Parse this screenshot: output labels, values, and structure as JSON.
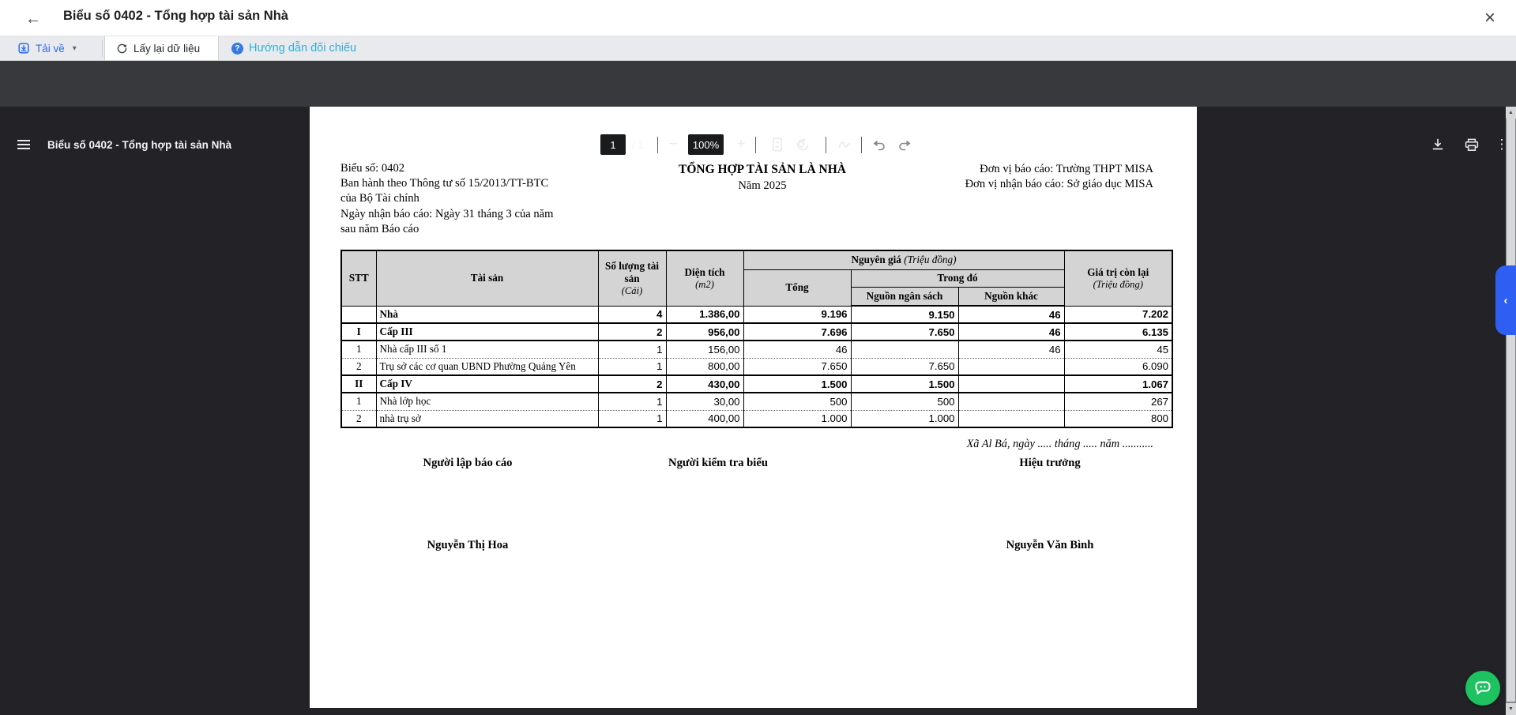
{
  "ui_colors": {
    "accent_blue": "#2e6bf0",
    "guide_teal": "#2fb0d8",
    "help_circle_blue": "#3779e3",
    "toolbar_dark": "#38393d",
    "viewer_bg": "#232327",
    "side_tab_blue": "#2e5ff2",
    "chat_green": "#1ec261",
    "table_header_gray": "#d4d4d4"
  },
  "glyphs": {
    "back": "←",
    "close": "×",
    "caret_down": "▾",
    "help": "?",
    "zoom_out": "−",
    "zoom_in": "+",
    "more_vertical": "⋮",
    "panel_chevron": "‹",
    "scroll_up": "▲",
    "scroll_down": "▼"
  },
  "window": {
    "title": "Biểu số 0402 - Tổng hợp tài sản Nhà"
  },
  "action_bar": {
    "download_label": "Tải về",
    "reload_label": "Lấy lại dữ liệu",
    "guide_label": "Hướng dẫn đối chiếu"
  },
  "pdf_toolbar": {
    "doc_title": "Biểu số 0402 - Tổng hợp tài sản Nhà",
    "page_current": "1",
    "page_total": "/ 1",
    "zoom_level": "100%"
  },
  "document": {
    "meta_left": [
      "Biểu số: 0402",
      "Ban hành theo Thông tư số 15/2013/TT-BTC",
      "của Bộ Tài chính",
      "Ngày nhận báo cáo: Ngày 31 tháng 3 của năm",
      "sau năm Báo cáo"
    ],
    "title": "TỔNG HỢP TÀI SẢN LÀ NHÀ",
    "subtitle": "Năm 2025",
    "meta_right": [
      "Đơn vị báo cáo: Trường THPT MISA",
      "Đơn vị nhận báo cáo: Sở giáo dục MISA"
    ],
    "table": {
      "headers": {
        "stt": "STT",
        "asset": "Tài sản",
        "quantity": "Số lượng tài sản",
        "quantity_unit": "(Cái)",
        "area": "Diện tích",
        "area_unit": "(m2)",
        "original_cost": "Nguyên giá",
        "original_cost_unit": "(Triệu đồng)",
        "total": "Tổng",
        "of_which": "Trong đó",
        "budget_source": "Nguồn ngân sách",
        "other_source": "Nguồn khác",
        "remaining_value": "Giá trị còn lại",
        "remaining_value_unit": "(Triệu đồng)"
      },
      "rows": [
        {
          "stt": "",
          "name": "Nhà",
          "qty": "4",
          "area": "1.386,00",
          "total": "9.196",
          "budget": "9.150",
          "other": "46",
          "remain": "7.202",
          "bold": true,
          "sep": "thin"
        },
        {
          "stt": "I",
          "name": "Cấp III",
          "qty": "2",
          "area": "956,00",
          "total": "7.696",
          "budget": "7.650",
          "other": "46",
          "remain": "6.135",
          "bold": true,
          "sep": "solid"
        },
        {
          "stt": "1",
          "name": "Nhà cấp III số 1",
          "qty": "1",
          "area": "156,00",
          "total": "46",
          "budget": "",
          "other": "46",
          "remain": "45",
          "bold": false,
          "sep": "solid"
        },
        {
          "stt": "2",
          "name": "Trụ sở các cơ quan UBND Phường Quảng Yên",
          "qty": "1",
          "area": "800,00",
          "total": "7.650",
          "budget": "7.650",
          "other": "",
          "remain": "6.090",
          "bold": false,
          "sep": "dotted"
        },
        {
          "stt": "II",
          "name": "Cấp IV",
          "qty": "2",
          "area": "430,00",
          "total": "1.500",
          "budget": "1.500",
          "other": "",
          "remain": "1.067",
          "bold": true,
          "sep": "solid"
        },
        {
          "stt": "1",
          "name": "Nhà lớp học",
          "qty": "1",
          "area": "30,00",
          "total": "500",
          "budget": "500",
          "other": "",
          "remain": "267",
          "bold": false,
          "sep": "solid"
        },
        {
          "stt": "2",
          "name": "nhà trụ sở",
          "qty": "1",
          "area": "400,00",
          "total": "1.000",
          "budget": "1.000",
          "other": "",
          "remain": "800",
          "bold": false,
          "sep": "dotted"
        }
      ]
    },
    "signature": {
      "date_line": "Xã Al Bá, ngày ..... tháng ..... năm ...........",
      "roles": [
        "Người lập báo cáo",
        "Người kiểm tra biểu",
        "Hiệu trưởng"
      ],
      "names": [
        "Nguyễn Thị Hoa",
        "Nguyễn Văn Bình"
      ]
    }
  }
}
